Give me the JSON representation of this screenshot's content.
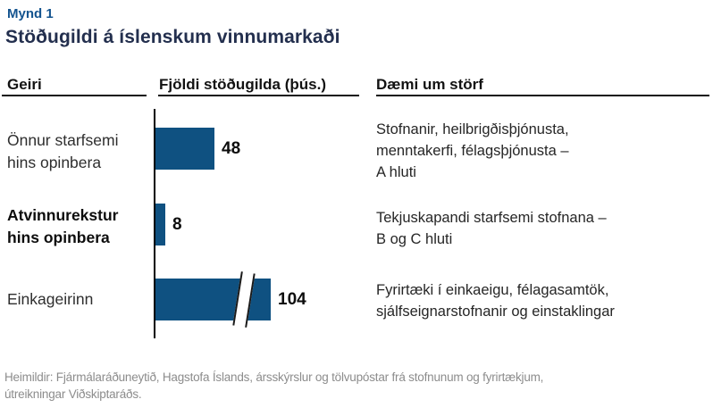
{
  "figure": {
    "label": "Mynd 1",
    "title": "Stöðugildi á íslenskum vinnumarkaði"
  },
  "columns": {
    "sector": "Geiri",
    "count": "Fjöldi stöðugilda (þús.)",
    "examples": "Dæmi um störf"
  },
  "rows": [
    {
      "sector_line1": "Önnur starfsemi",
      "sector_line2": "hins opinbera",
      "value": 48,
      "value_label": "48",
      "axis_break": false,
      "examples_line1": "Stofnanir, heilbrigðisþjónusta,",
      "examples_line2": "menntakerfi, félagsþjónusta –",
      "examples_line3": "A hluti"
    },
    {
      "sector_line1": "Atvinnurekstur",
      "sector_line2": "hins opinbera",
      "value": 8,
      "value_label": "8",
      "axis_break": false,
      "examples_line1": "Tekjuskapandi starfsemi stofnana –",
      "examples_line2": "B og C hluti"
    },
    {
      "sector_line1": "Einkageirinn",
      "sector_line2": "",
      "value": 104,
      "value_label": "104",
      "axis_break": true,
      "examples_line1": "Fyrirtæki í einkaeigu, félagasamtök,",
      "examples_line2": "sjálfseignarstofnanir og einstaklingar"
    }
  ],
  "footer": {
    "line1": "Heimildir: Fjármálaráðuneytið, Hagstofa Íslands, ársskýrslur og tölvupóstar frá stofnunum og fyrirtækjum,",
    "line2": "útreikningar Viðskiptaráðs."
  },
  "colors": {
    "bar": "#0F5181",
    "figure_label": "#14548F",
    "title": "#232F4E",
    "header_text": "#121212",
    "footer_text": "#8c8c8c"
  },
  "chart_data": {
    "type": "bar",
    "orientation": "horizontal",
    "figure_label": "Mynd 1",
    "title": "Stöðugildi á íslenskum vinnumarkaði",
    "categories": [
      "Önnur starfsemi hins opinbera",
      "Atvinnurekstur hins opinbera",
      "Einkageirinn"
    ],
    "values": [
      48,
      8,
      104
    ],
    "value_axis_label": "Fjöldi stöðugilda (þús.)",
    "data_labels": [
      "48",
      "8",
      "104"
    ],
    "bar_color": "#0F5181",
    "grid": false,
    "legend": false,
    "axis_break": {
      "category": "Einkageirinn",
      "value": 104,
      "note": "bar truncated with double-slash break mark"
    },
    "category_descriptions": [
      "Stofnanir, heilbrigðisþjónusta, menntakerfi, félagsþjónusta – A hluti",
      "Tekjuskapandi starfsemi stofnana – B og C hluti",
      "Fyrirtæki í einkaeigu, félagasamtök, sjálfseignarstofnanir og einstaklingar"
    ]
  }
}
